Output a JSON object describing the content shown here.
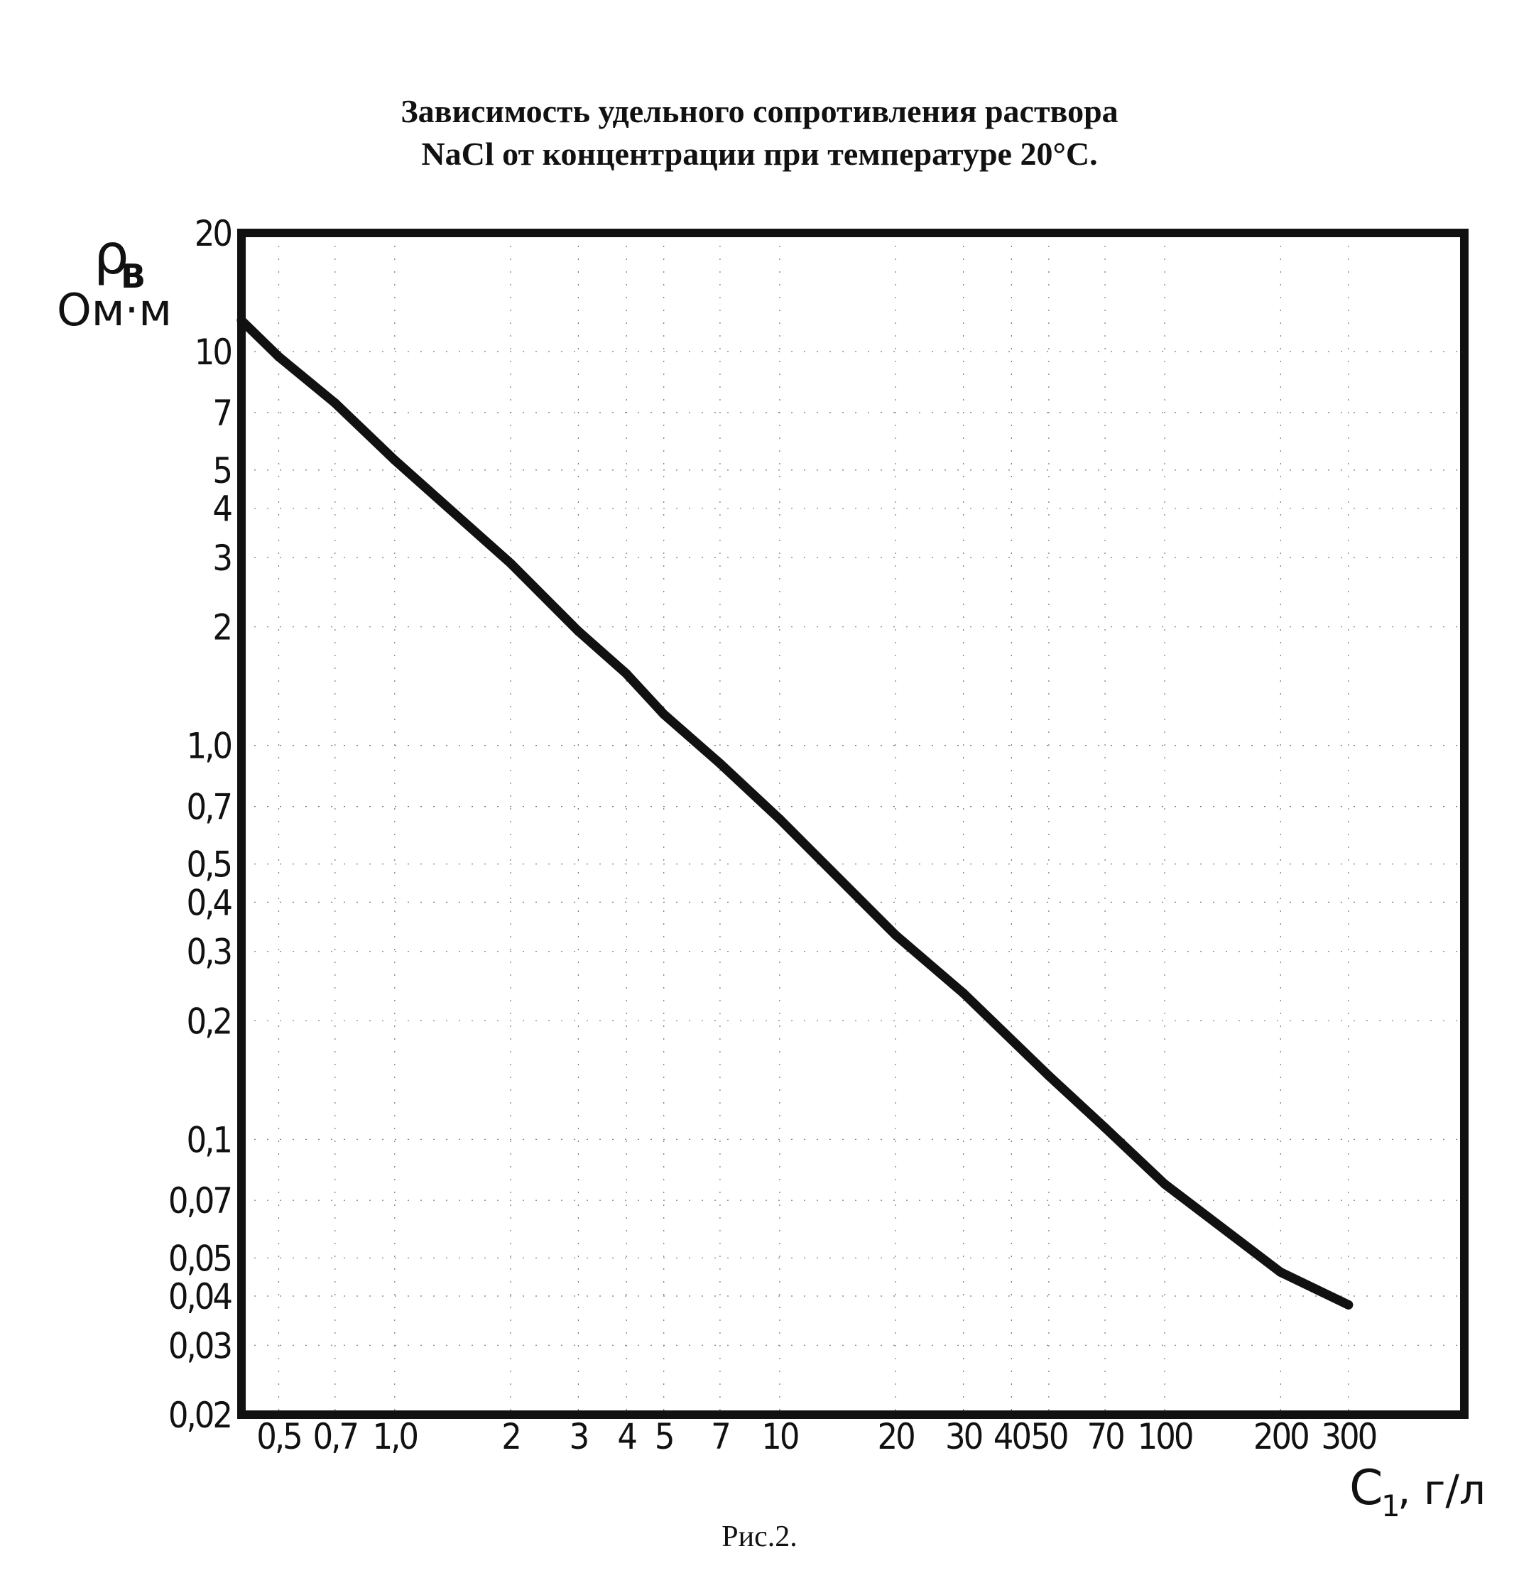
{
  "title_lines": [
    "Зависимость удельного сопротивления раствора",
    "NaCl от концентрации при температуре 20°C."
  ],
  "caption": "Рис.2.",
  "colors": {
    "background": "#ffffff",
    "frame": "#111111",
    "curve": "#111111",
    "grid": "#777777"
  },
  "chart_data": {
    "type": "line",
    "x_scale": "log",
    "y_scale": "log",
    "xlabel": {
      "main": "C",
      "sub": "1",
      "rest": ", г/л"
    },
    "ylabel": {
      "main": "ρ",
      "sub": "B",
      "unit": "Ом·м"
    },
    "xlim": [
      0.4,
      600
    ],
    "ylim": [
      0.02,
      20
    ],
    "grid": "faint dotted",
    "x_ticks": [
      {
        "value": 0.5,
        "label": "0,5"
      },
      {
        "value": 0.7,
        "label": "0,7"
      },
      {
        "value": 1.0,
        "label": "1,0"
      },
      {
        "value": 2,
        "label": "2"
      },
      {
        "value": 3,
        "label": "3"
      },
      {
        "value": 4,
        "label": "4"
      },
      {
        "value": 5,
        "label": "5"
      },
      {
        "value": 7,
        "label": "7"
      },
      {
        "value": 10,
        "label": "10"
      },
      {
        "value": 20,
        "label": "20"
      },
      {
        "value": 30,
        "label": "30"
      },
      {
        "value": 40,
        "label": "40"
      },
      {
        "value": 50,
        "label": "50"
      },
      {
        "value": 70,
        "label": "70"
      },
      {
        "value": 100,
        "label": "100"
      },
      {
        "value": 200,
        "label": "200"
      },
      {
        "value": 300,
        "label": "300"
      }
    ],
    "y_ticks": [
      {
        "value": 20,
        "label": "20"
      },
      {
        "value": 10,
        "label": "10"
      },
      {
        "value": 7,
        "label": "7"
      },
      {
        "value": 5,
        "label": "5"
      },
      {
        "value": 4,
        "label": "4"
      },
      {
        "value": 3,
        "label": "3"
      },
      {
        "value": 2,
        "label": "2"
      },
      {
        "value": 1.0,
        "label": "1,0"
      },
      {
        "value": 0.7,
        "label": "0,7"
      },
      {
        "value": 0.5,
        "label": "0,5"
      },
      {
        "value": 0.4,
        "label": "0,4"
      },
      {
        "value": 0.3,
        "label": "0,3"
      },
      {
        "value": 0.2,
        "label": "0,2"
      },
      {
        "value": 0.1,
        "label": "0,1"
      },
      {
        "value": 0.07,
        "label": "0,07"
      },
      {
        "value": 0.05,
        "label": "0,05"
      },
      {
        "value": 0.04,
        "label": "0,04"
      },
      {
        "value": 0.03,
        "label": "0,03"
      },
      {
        "value": 0.02,
        "label": "0,02"
      }
    ],
    "series": [
      {
        "points": [
          [
            0.4,
            12
          ],
          [
            0.5,
            9.7
          ],
          [
            0.7,
            7.4
          ],
          [
            1.0,
            5.3
          ],
          [
            2,
            2.9
          ],
          [
            3,
            1.95
          ],
          [
            4,
            1.52
          ],
          [
            5,
            1.2
          ],
          [
            7,
            0.9
          ],
          [
            10,
            0.65
          ],
          [
            20,
            0.33
          ],
          [
            30,
            0.235
          ],
          [
            50,
            0.145
          ],
          [
            70,
            0.107
          ],
          [
            100,
            0.077
          ],
          [
            200,
            0.046
          ],
          [
            300,
            0.038
          ]
        ]
      }
    ]
  }
}
